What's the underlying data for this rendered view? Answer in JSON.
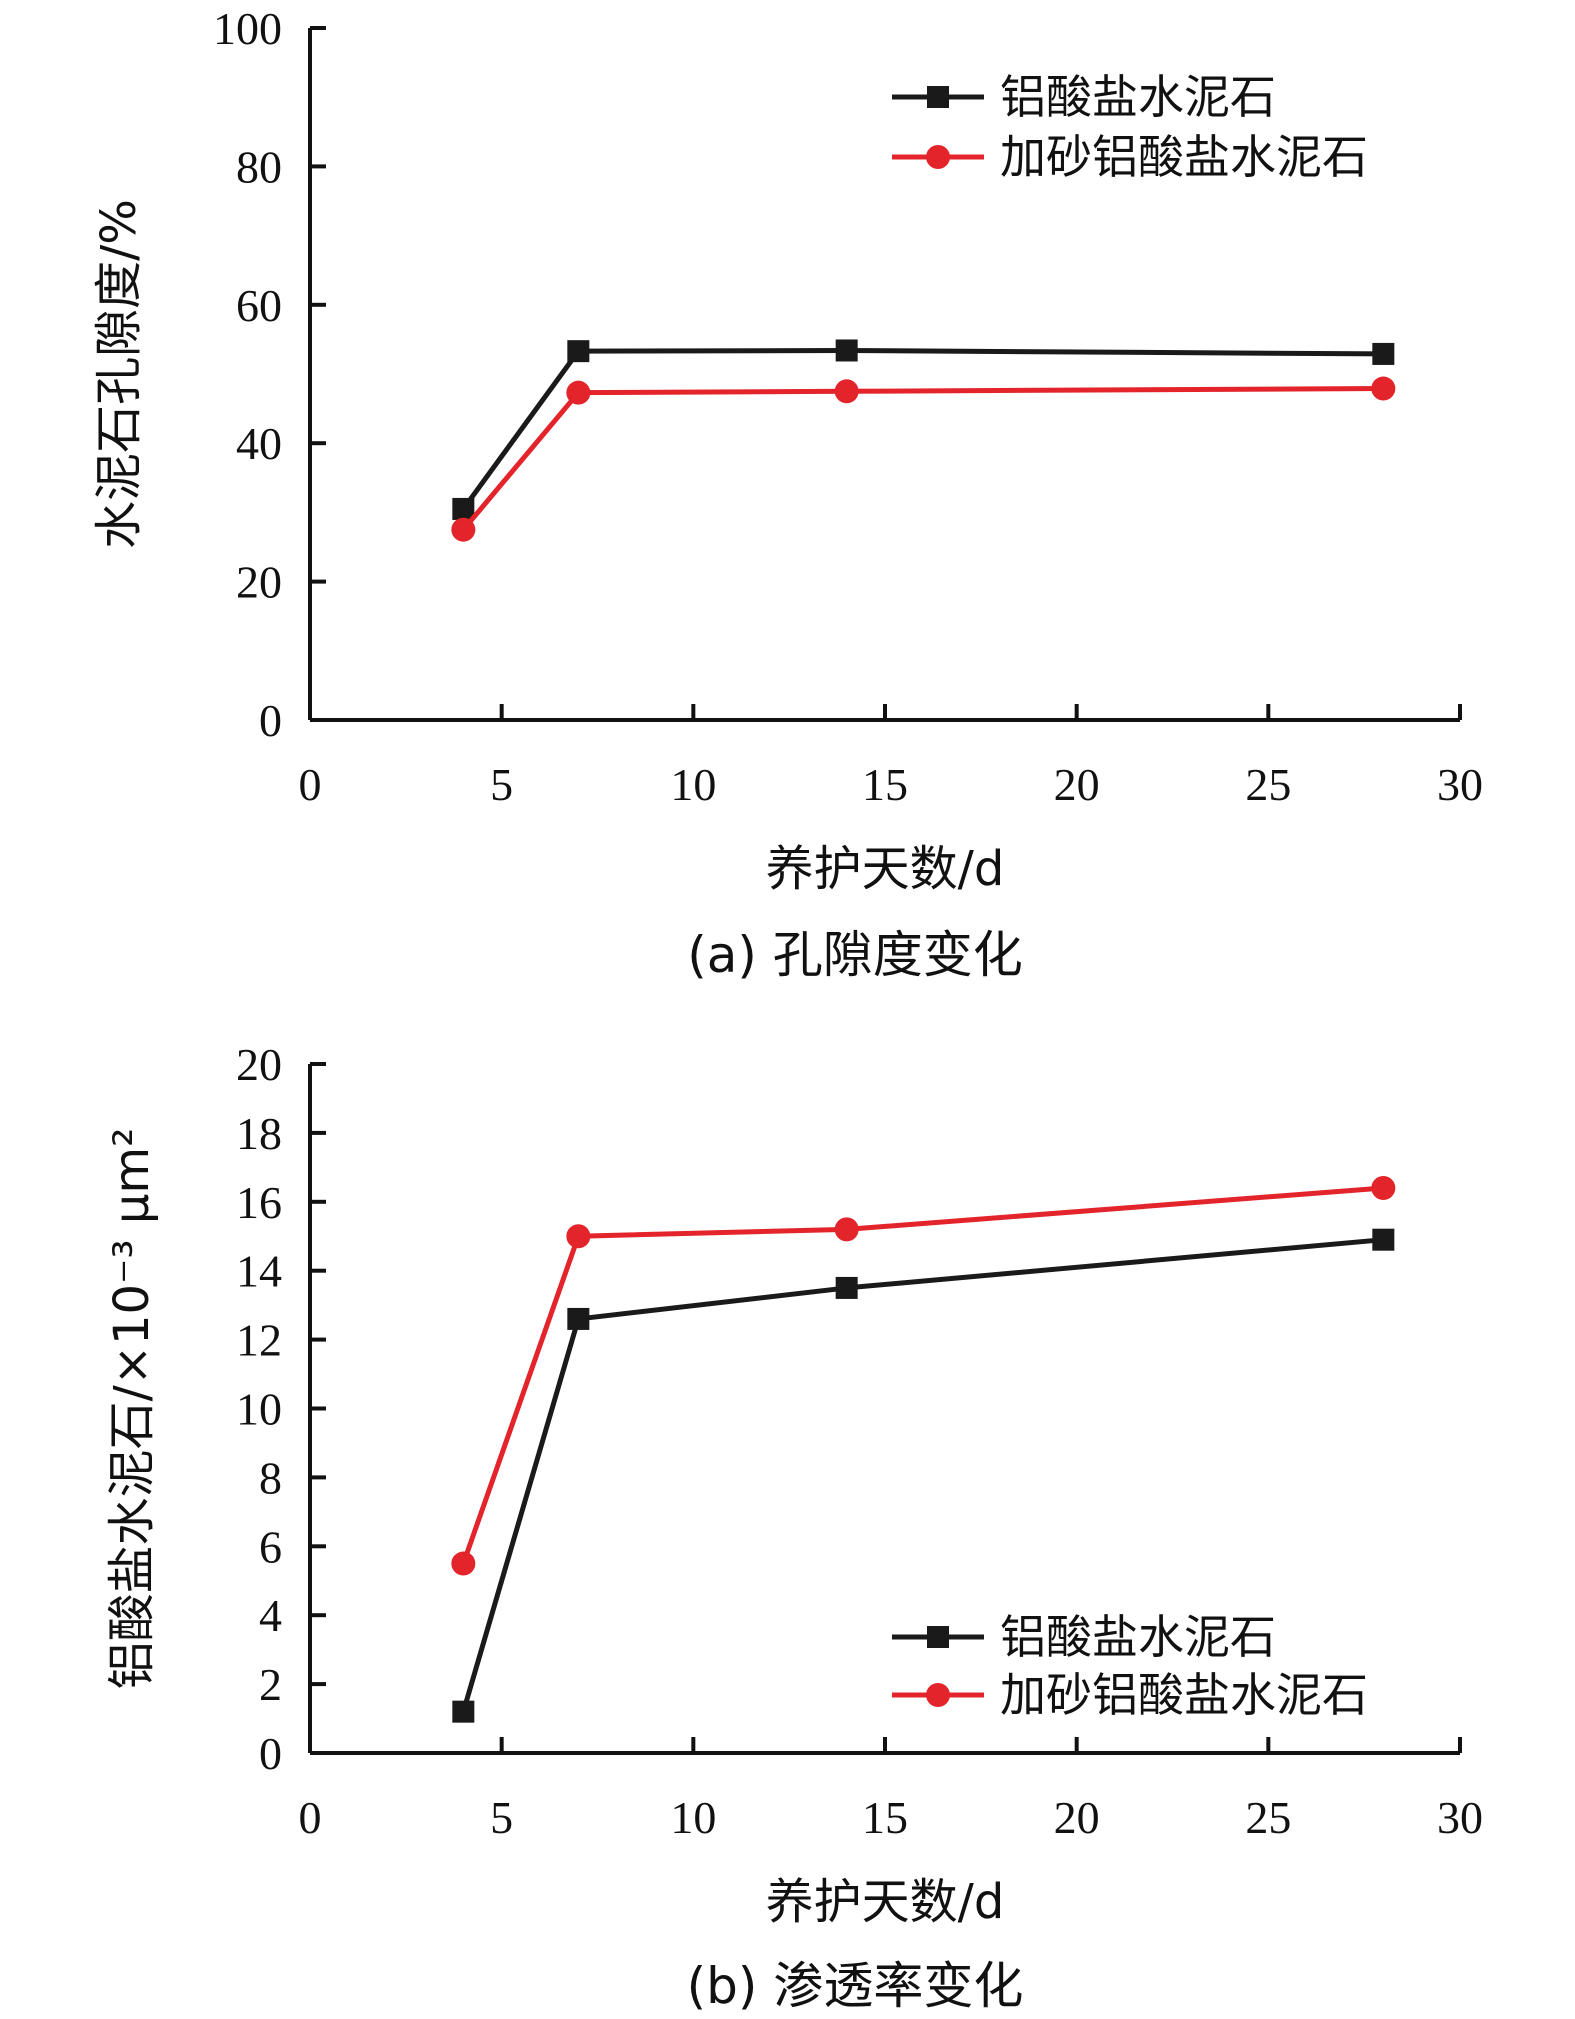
{
  "chart_data": [
    {
      "id": "porosity",
      "type": "line",
      "caption": "(a) 孔隙度变化",
      "xlabel": "养护天数/d",
      "ylabel": "水泥石孔隙度/%",
      "xlim": [
        0,
        30
      ],
      "ylim": [
        0,
        100
      ],
      "xticks": [
        0,
        5,
        10,
        15,
        20,
        25,
        30
      ],
      "yticks": [
        0,
        20,
        40,
        60,
        80,
        100
      ],
      "legend_position": "top-right",
      "grid": false,
      "x": [
        4,
        7,
        14,
        28
      ],
      "series": [
        {
          "name": "铝酸盐水泥石",
          "marker": "square",
          "color": "#1a1a1a",
          "values": [
            30.5,
            53.3,
            53.4,
            52.9
          ]
        },
        {
          "name": "加砂铝酸盐水泥石",
          "marker": "circle",
          "color": "#e3242b",
          "values": [
            27.5,
            47.3,
            47.5,
            47.9
          ]
        }
      ]
    },
    {
      "id": "permeability",
      "type": "line",
      "caption": "(b) 渗透率变化",
      "xlabel": "养护天数/d",
      "ylabel": "铝酸盐水泥石/×10⁻³ μm²",
      "xlim": [
        0,
        30
      ],
      "ylim": [
        0,
        20
      ],
      "xticks": [
        0,
        5,
        10,
        15,
        20,
        25,
        30
      ],
      "yticks": [
        0,
        2,
        4,
        6,
        8,
        10,
        12,
        14,
        16,
        18,
        20
      ],
      "legend_position": "bottom-right",
      "grid": false,
      "x": [
        4,
        7,
        14,
        28
      ],
      "series": [
        {
          "name": "铝酸盐水泥石",
          "marker": "square",
          "color": "#1a1a1a",
          "values": [
            1.2,
            12.6,
            13.5,
            14.9
          ]
        },
        {
          "name": "加砂铝酸盐水泥石",
          "marker": "circle",
          "color": "#e3242b",
          "values": [
            5.5,
            15.0,
            15.2,
            16.4
          ]
        }
      ]
    }
  ]
}
